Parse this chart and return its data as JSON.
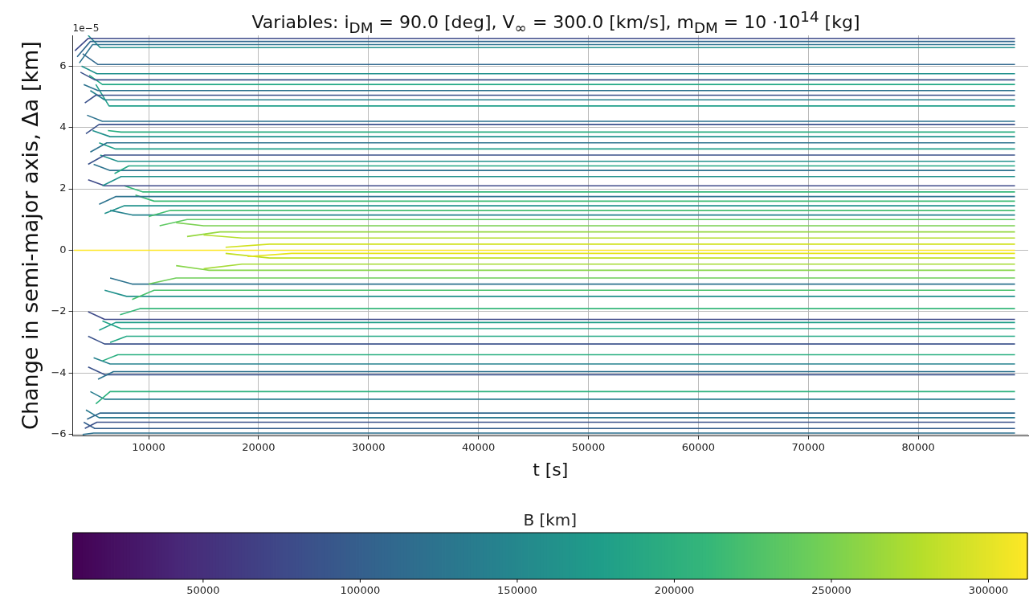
{
  "chart_data": {
    "type": "line",
    "title": "Variables: i$_{DM}$ = 90.0 [deg], V$_{∞}$ = 300.0 [km/s], m$_{DM}$ = 10 ·10$^{14}$ [kg]",
    "xlabel": "t [s]",
    "ylabel": "Change in semi-major axis, Δa [km]",
    "clabel": "B [km]",
    "annotations": [
      "1e−5"
    ],
    "xlim": [
      3100,
      90000
    ],
    "xticks": [
      10000,
      20000,
      30000,
      40000,
      50000,
      60000,
      70000,
      80000
    ],
    "ylim": [
      -6.03,
      7.0
    ],
    "yticks": [
      {
        "value": -6,
        "label": "−6"
      },
      {
        "value": -4,
        "label": "−4"
      },
      {
        "value": -2,
        "label": "−2"
      },
      0,
      2,
      4,
      6
    ],
    "clim": [
      8500,
      312400
    ],
    "cticks": [
      50000,
      100000,
      150000,
      200000,
      250000,
      300000
    ],
    "grid": true,
    "legend": false,
    "series": [
      {
        "color": "#3e4a89",
        "x": [
          3300,
          4500,
          88800
        ],
        "values": [
          6.5,
          6.9,
          6.9
        ]
      },
      {
        "color": "#31688e",
        "x": [
          3500,
          4700,
          88800
        ],
        "values": [
          6.3,
          6.8,
          6.8
        ]
      },
      {
        "color": "#2c728e",
        "x": [
          3700,
          4900,
          88800
        ],
        "values": [
          6.1,
          6.7,
          6.7
        ]
      },
      {
        "color": "#21918c",
        "x": [
          4500,
          5600,
          88800
        ],
        "values": [
          7.0,
          6.6,
          6.6
        ]
      },
      {
        "color": "#31688e",
        "x": [
          4000,
          5400,
          88800
        ],
        "values": [
          6.4,
          6.05,
          6.05
        ]
      },
      {
        "color": "#21918c",
        "x": [
          3900,
          5300,
          88800
        ],
        "values": [
          6.0,
          5.75,
          5.75
        ]
      },
      {
        "color": "#3b528b",
        "x": [
          3800,
          5100,
          88800
        ],
        "values": [
          5.8,
          5.55,
          5.55
        ]
      },
      {
        "color": "#22a884",
        "x": [
          4600,
          5800,
          88800
        ],
        "values": [
          5.7,
          5.4,
          5.4
        ]
      },
      {
        "color": "#2c728e",
        "x": [
          4100,
          5400,
          88800
        ],
        "values": [
          5.4,
          5.2,
          5.2
        ]
      },
      {
        "color": "#3b528b",
        "x": [
          4200,
          5200,
          88800
        ],
        "values": [
          4.8,
          5.05,
          5.05
        ]
      },
      {
        "color": "#26828e",
        "x": [
          4700,
          6000,
          88800
        ],
        "values": [
          5.2,
          4.9,
          4.9
        ]
      },
      {
        "color": "#1f9e89",
        "x": [
          5200,
          6400,
          88800
        ],
        "values": [
          5.4,
          4.7,
          4.7
        ]
      },
      {
        "color": "#2c728e",
        "x": [
          4400,
          5800,
          88800
        ],
        "values": [
          4.4,
          4.2,
          4.2
        ]
      },
      {
        "color": "#3b528b",
        "x": [
          4300,
          5500,
          88800
        ],
        "values": [
          3.8,
          4.1,
          4.1
        ]
      },
      {
        "color": "#28ae80",
        "x": [
          6300,
          7500,
          88800
        ],
        "values": [
          3.9,
          3.85,
          3.85
        ]
      },
      {
        "color": "#21918c",
        "x": [
          4900,
          6500,
          88800
        ],
        "values": [
          3.9,
          3.7,
          3.7
        ]
      },
      {
        "color": "#2c728e",
        "x": [
          4700,
          6200,
          88800
        ],
        "values": [
          3.2,
          3.5,
          3.5
        ]
      },
      {
        "color": "#1f9e89",
        "x": [
          5500,
          7000,
          88800
        ],
        "values": [
          3.5,
          3.3,
          3.3
        ]
      },
      {
        "color": "#3b528b",
        "x": [
          4500,
          6000,
          88800
        ],
        "values": [
          2.8,
          3.1,
          3.1
        ]
      },
      {
        "color": "#21918c",
        "x": [
          5600,
          7200,
          88800
        ],
        "values": [
          3.1,
          2.9,
          2.9
        ]
      },
      {
        "color": "#22a884",
        "x": [
          6900,
          8200,
          88800
        ],
        "values": [
          2.5,
          2.75,
          2.75
        ]
      },
      {
        "color": "#2c728e",
        "x": [
          5000,
          6500,
          88800
        ],
        "values": [
          2.8,
          2.6,
          2.6
        ]
      },
      {
        "color": "#21918c",
        "x": [
          5800,
          7500,
          88800
        ],
        "values": [
          2.1,
          2.4,
          2.4
        ]
      },
      {
        "color": "#3e4a89",
        "x": [
          4500,
          6000,
          88800
        ],
        "values": [
          2.3,
          2.1,
          2.1
        ]
      },
      {
        "color": "#35b779",
        "x": [
          7800,
          9500,
          88800
        ],
        "values": [
          2.1,
          1.9,
          1.9
        ]
      },
      {
        "color": "#2c728e",
        "x": [
          5500,
          7000,
          88800
        ],
        "values": [
          1.5,
          1.75,
          1.75
        ]
      },
      {
        "color": "#3dbc74",
        "x": [
          8800,
          10500,
          88800
        ],
        "values": [
          1.8,
          1.6,
          1.6
        ]
      },
      {
        "color": "#21918c",
        "x": [
          6000,
          7800,
          88800
        ],
        "values": [
          1.2,
          1.45,
          1.45
        ]
      },
      {
        "color": "#44bf70",
        "x": [
          10000,
          12000,
          88800
        ],
        "values": [
          1.1,
          1.3,
          1.3
        ]
      },
      {
        "color": "#26828e",
        "x": [
          6500,
          8500,
          88800
        ],
        "values": [
          1.3,
          1.15,
          1.15
        ]
      },
      {
        "color": "#5ec962",
        "x": [
          11000,
          13500,
          88800
        ],
        "values": [
          0.8,
          1.0,
          1.0
        ]
      },
      {
        "color": "#7ad151",
        "x": [
          12500,
          15000,
          88800
        ],
        "values": [
          0.9,
          0.8,
          0.8
        ]
      },
      {
        "color": "#95d840",
        "x": [
          13500,
          16500,
          88800
        ],
        "values": [
          0.45,
          0.6,
          0.6
        ]
      },
      {
        "color": "#b5de2b",
        "x": [
          15000,
          18500,
          88800
        ],
        "values": [
          0.5,
          0.4,
          0.4
        ]
      },
      {
        "color": "#d0e11c",
        "x": [
          17000,
          21000,
          88800
        ],
        "values": [
          0.1,
          0.2,
          0.2
        ]
      },
      {
        "color": "#fde725",
        "x": [
          3200,
          88800
        ],
        "values": [
          0,
          0
        ]
      },
      {
        "color": "#e5e419",
        "x": [
          19000,
          23000,
          88800
        ],
        "values": [
          -0.2,
          -0.1,
          -0.1
        ]
      },
      {
        "color": "#c2df23",
        "x": [
          17000,
          21000,
          88800
        ],
        "values": [
          -0.1,
          -0.25,
          -0.25
        ]
      },
      {
        "color": "#a5db36",
        "x": [
          15000,
          18500,
          88800
        ],
        "values": [
          -0.6,
          -0.45,
          -0.45
        ]
      },
      {
        "color": "#86d549",
        "x": [
          12500,
          15500,
          88800
        ],
        "values": [
          -0.5,
          -0.65,
          -0.65
        ]
      },
      {
        "color": "#6ece58",
        "x": [
          10000,
          12500,
          88800
        ],
        "values": [
          -1.1,
          -0.9,
          -0.9
        ]
      },
      {
        "color": "#2c728e",
        "x": [
          6500,
          8500,
          88800
        ],
        "values": [
          -0.9,
          -1.1,
          -1.1
        ]
      },
      {
        "color": "#4ac16d",
        "x": [
          8500,
          10500,
          88800
        ],
        "values": [
          -1.6,
          -1.3,
          -1.3
        ]
      },
      {
        "color": "#21918c",
        "x": [
          6000,
          8000,
          88800
        ],
        "values": [
          -1.3,
          -1.5,
          -1.5
        ]
      },
      {
        "color": "#35b779",
        "x": [
          7400,
          9200,
          88800
        ],
        "values": [
          -2.1,
          -1.9,
          -1.9
        ]
      },
      {
        "color": "#3e4a89",
        "x": [
          4500,
          6000,
          88800
        ],
        "values": [
          -2.0,
          -2.25,
          -2.25
        ]
      },
      {
        "color": "#1f9e89",
        "x": [
          5500,
          7000,
          88800
        ],
        "values": [
          -2.6,
          -2.35,
          -2.35
        ]
      },
      {
        "color": "#20a386",
        "x": [
          5800,
          7500,
          88800
        ],
        "values": [
          -2.3,
          -2.55,
          -2.55
        ]
      },
      {
        "color": "#22a884",
        "x": [
          6500,
          8000,
          88800
        ],
        "values": [
          -3.0,
          -2.8,
          -2.8
        ]
      },
      {
        "color": "#3b528b",
        "x": [
          4500,
          6000,
          88800
        ],
        "values": [
          -2.8,
          -3.05,
          -3.05
        ]
      },
      {
        "color": "#29af7f",
        "x": [
          5800,
          7200,
          88800
        ],
        "values": [
          -3.6,
          -3.4,
          -3.4
        ]
      },
      {
        "color": "#26828e",
        "x": [
          5000,
          6500,
          88800
        ],
        "values": [
          -3.5,
          -3.7,
          -3.7
        ]
      },
      {
        "color": "#2c728e",
        "x": [
          5400,
          6800,
          88800
        ],
        "values": [
          -4.2,
          -3.95,
          -3.95
        ]
      },
      {
        "color": "#3b528b",
        "x": [
          4500,
          6000,
          88800
        ],
        "values": [
          -3.8,
          -4.05,
          -4.05
        ]
      },
      {
        "color": "#2db27d",
        "x": [
          5200,
          6500,
          88800
        ],
        "values": [
          -5.0,
          -4.6,
          -4.6
        ]
      },
      {
        "color": "#287d8e",
        "x": [
          4700,
          6000,
          88800
        ],
        "values": [
          -4.6,
          -4.85,
          -4.85
        ]
      },
      {
        "color": "#31688e",
        "x": [
          4400,
          5600,
          88800
        ],
        "values": [
          -5.5,
          -5.3,
          -5.3
        ]
      },
      {
        "color": "#2a788e",
        "x": [
          4300,
          5500,
          88800
        ],
        "values": [
          -5.2,
          -5.45,
          -5.45
        ]
      },
      {
        "color": "#3b528b",
        "x": [
          4200,
          5300,
          88800
        ],
        "values": [
          -5.8,
          -5.6,
          -5.6
        ]
      },
      {
        "color": "#355f8d",
        "x": [
          4100,
          5100,
          88800
        ],
        "values": [
          -5.6,
          -5.8,
          -5.8
        ]
      },
      {
        "color": "#2d708e",
        "x": [
          4000,
          5000,
          88800
        ],
        "values": [
          -6.0,
          -5.95,
          -5.95
        ]
      }
    ]
  }
}
